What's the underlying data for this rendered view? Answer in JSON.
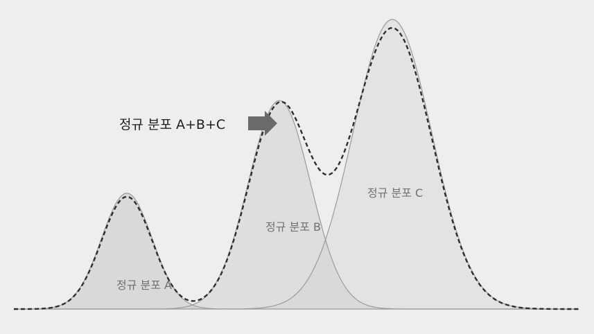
{
  "labels": {
    "sum": "정규 분포 A+B+C",
    "a": "정규 분포 A",
    "b": "정규 분포 B",
    "c": "정규 분포 C"
  },
  "curves": [
    {
      "id": "a",
      "mu": 0.2,
      "sigma": 0.045,
      "amp": 0.4
    },
    {
      "id": "b",
      "mu": 0.47,
      "sigma": 0.055,
      "amp": 0.72
    },
    {
      "id": "c",
      "mu": 0.67,
      "sigma": 0.07,
      "amp": 1.0
    }
  ],
  "colors": {
    "background": "#eeeeee",
    "curve_a": "#c9c9c9",
    "curve_b": "#d2d2d2",
    "curve_c": "#dadada",
    "outline": "#9a9a9a",
    "sum_line": "#2e2e2e",
    "text_dark": "#1e1e1e",
    "text_mid": "#707070",
    "arrow": "#6a6a6a"
  }
}
